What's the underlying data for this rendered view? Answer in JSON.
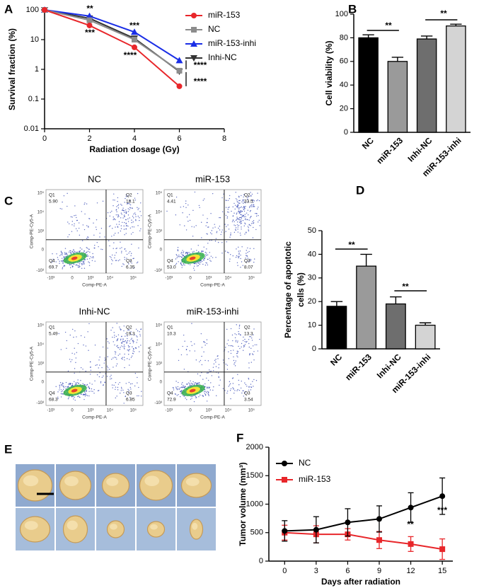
{
  "chart_data": [
    {
      "type": "line",
      "label": "A",
      "x": [
        0,
        2,
        4,
        6
      ],
      "xlim": [
        0,
        8
      ],
      "xticks": [
        0,
        2,
        4,
        6,
        8
      ],
      "ylim": [
        0.01,
        100
      ],
      "yticks": [
        0.01,
        0.1,
        1,
        10,
        100
      ],
      "log_y": true,
      "x_label": "Radiation dosage (Gy)",
      "y_label": "Survival fraction (%)",
      "series": [
        {
          "name": "miR-153",
          "color": "#e8262a",
          "marker": "circle",
          "values": [
            100,
            30,
            5.5,
            0.27
          ]
        },
        {
          "name": "NC",
          "color": "#8c8c8c",
          "marker": "square",
          "values": [
            100,
            45,
            10,
            0.9
          ]
        },
        {
          "name": "miR-153-inhi",
          "color": "#1a2ee6",
          "marker": "triangle",
          "values": [
            100,
            62,
            18,
            2
          ]
        },
        {
          "name": "Inhi-NC",
          "color": "#333333",
          "marker": "triangle-down",
          "values": [
            100,
            52,
            11,
            0.85
          ]
        }
      ],
      "annotations": [
        "**",
        "***",
        "***",
        "****",
        "****",
        "****"
      ]
    },
    {
      "type": "bar",
      "label": "B",
      "categories": [
        "NC",
        "miR-153",
        "Inhi-NC",
        "miR-153-inhi"
      ],
      "values": [
        80,
        60,
        79,
        90
      ],
      "errors": [
        2.5,
        3.5,
        2.5,
        1.5
      ],
      "colors": [
        "#000000",
        "#9a9a9a",
        "#6e6e6e",
        "#d4d4d4"
      ],
      "ylim": [
        0,
        100
      ],
      "yticks": [
        0,
        20,
        40,
        60,
        80,
        100
      ],
      "y_label": "Cell viability (%)",
      "annotations": [
        "**",
        "**"
      ]
    },
    {
      "type": "bar",
      "label": "D",
      "categories": [
        "NC",
        "miR-153",
        "Inhi-NC",
        "miR-153-inhi"
      ],
      "values": [
        18,
        35,
        19,
        10
      ],
      "errors": [
        2,
        5,
        3,
        1
      ],
      "colors": [
        "#000000",
        "#9a9a9a",
        "#6e6e6e",
        "#d4d4d4"
      ],
      "ylim": [
        0,
        50
      ],
      "yticks": [
        0,
        10,
        20,
        30,
        40,
        50
      ],
      "y_label": [
        "Percentage of apoptotic",
        "cells (%)"
      ],
      "annotations": [
        "**",
        "**"
      ]
    },
    {
      "type": "line",
      "label": "F",
      "x": [
        0,
        3,
        6,
        9,
        12,
        15
      ],
      "xlim": [
        -1.5,
        16
      ],
      "xticks": [
        0,
        3,
        6,
        9,
        12,
        15
      ],
      "ylim": [
        0,
        2000
      ],
      "yticks": [
        0,
        500,
        1000,
        1500,
        2000
      ],
      "x_label": "Days after radiation",
      "y_label": "Tumor volume (mm³)",
      "series": [
        {
          "name": "NC",
          "color": "#000000",
          "marker": "circle",
          "values": [
            530,
            550,
            680,
            740,
            940,
            1140
          ],
          "errors": [
            180,
            230,
            240,
            230,
            260,
            320
          ]
        },
        {
          "name": "miR-153",
          "color": "#e8262a",
          "marker": "square",
          "values": [
            500,
            470,
            470,
            370,
            300,
            210
          ],
          "errors": [
            130,
            150,
            100,
            150,
            130,
            180
          ]
        }
      ],
      "annotations": [
        "**",
        "***"
      ]
    }
  ],
  "flow_cytometry": {
    "label": "C",
    "x_label": "Comp-PE-A",
    "y_label": "Comp-PE-Cy5-A",
    "x_ticks": [
      "-10³",
      "0",
      "10³",
      "10⁴",
      "10⁵"
    ],
    "y_ticks": [
      "-10³",
      "0",
      "10³",
      "10⁴",
      "10⁵"
    ],
    "panels": [
      {
        "title": "NC",
        "quadrants": [
          {
            "name": "Q1",
            "value": "5.90"
          },
          {
            "name": "Q2",
            "value": "18.1"
          },
          {
            "name": "Q3",
            "value": "6.35"
          },
          {
            "name": "Q4",
            "value": "69.7"
          }
        ]
      },
      {
        "title": "miR-153",
        "quadrants": [
          {
            "name": "Q1",
            "value": "4.41"
          },
          {
            "name": "Q2",
            "value": "33.5"
          },
          {
            "name": "Q3",
            "value": "8.07"
          },
          {
            "name": "Q4",
            "value": "53.0"
          }
        ]
      },
      {
        "title": "Inhi-NC",
        "quadrants": [
          {
            "name": "Q1",
            "value": "5.49"
          },
          {
            "name": "Q2",
            "value": "19.3"
          },
          {
            "name": "Q3",
            "value": "6.85"
          },
          {
            "name": "Q4",
            "value": "68.3"
          }
        ]
      },
      {
        "title": "miR-153-inhi",
        "quadrants": [
          {
            "name": "Q1",
            "value": "10.3"
          },
          {
            "name": "Q2",
            "value": "13.3"
          },
          {
            "name": "Q3",
            "value": "3.54"
          },
          {
            "name": "Q4",
            "value": "72.9"
          }
        ]
      }
    ]
  },
  "tumor_images": {
    "label": "E"
  }
}
